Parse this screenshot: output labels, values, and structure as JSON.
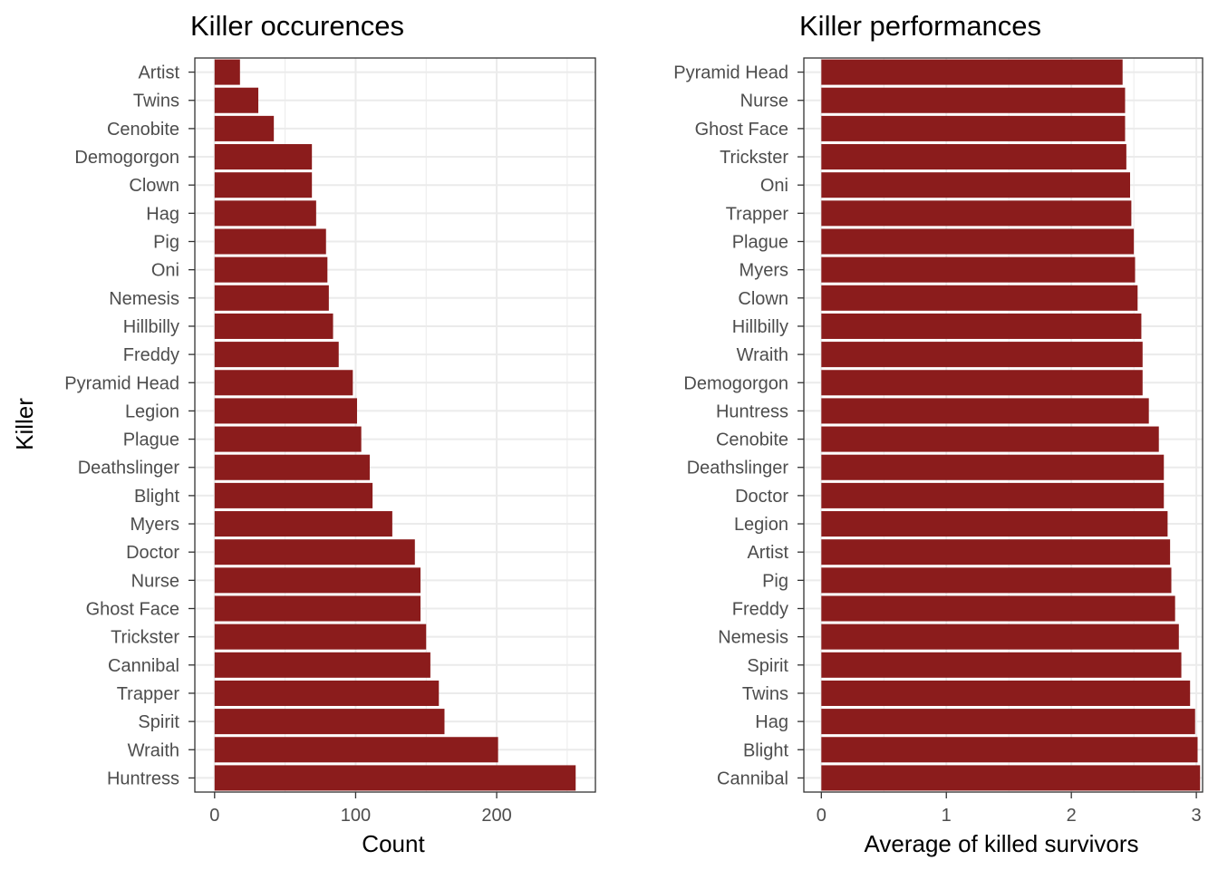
{
  "colors": {
    "bar": "#8B1C1C",
    "grid": "#EBEBEB",
    "panel_border": "#333333",
    "tick_text": "#4D4D4D"
  },
  "chart_data": [
    {
      "type": "bar",
      "orientation": "horizontal",
      "title": "Killer occurences",
      "xlabel": "Count",
      "ylabel": "Killer",
      "xlim": [
        -14,
        270
      ],
      "xticks": [
        0,
        100,
        200
      ],
      "xtick_labels": [
        "0",
        "100",
        "200"
      ],
      "grid": true,
      "categories": [
        "Artist",
        "Twins",
        "Cenobite",
        "Demogorgon",
        "Clown",
        "Hag",
        "Pig",
        "Oni",
        "Nemesis",
        "Hillbilly",
        "Freddy",
        "Pyramid Head",
        "Legion",
        "Plague",
        "Deathslinger",
        "Blight",
        "Myers",
        "Doctor",
        "Nurse",
        "Ghost Face",
        "Trickster",
        "Cannibal",
        "Trapper",
        "Spirit",
        "Wraith",
        "Huntress"
      ],
      "values": [
        18,
        31,
        42,
        69,
        69,
        72,
        79,
        80,
        81,
        84,
        88,
        98,
        101,
        104,
        110,
        112,
        126,
        142,
        146,
        146,
        150,
        153,
        159,
        163,
        201,
        256
      ]
    },
    {
      "type": "bar",
      "orientation": "horizontal",
      "title": "Killer performances",
      "xlabel": "Average of killed survivors",
      "ylabel": "",
      "xlim": [
        -0.14,
        3.05
      ],
      "xticks": [
        0,
        1,
        2,
        3
      ],
      "xtick_labels": [
        "0",
        "1",
        "2",
        "3"
      ],
      "grid": true,
      "categories": [
        "Pyramid Head",
        "Nurse",
        "Ghost Face",
        "Trickster",
        "Oni",
        "Trapper",
        "Plague",
        "Myers",
        "Clown",
        "Hillbilly",
        "Wraith",
        "Demogorgon",
        "Huntress",
        "Cenobite",
        "Deathslinger",
        "Doctor",
        "Legion",
        "Artist",
        "Pig",
        "Freddy",
        "Nemesis",
        "Spirit",
        "Twins",
        "Hag",
        "Blight",
        "Cannibal"
      ],
      "values": [
        2.41,
        2.43,
        2.43,
        2.44,
        2.47,
        2.48,
        2.5,
        2.51,
        2.53,
        2.56,
        2.57,
        2.57,
        2.62,
        2.7,
        2.74,
        2.74,
        2.77,
        2.79,
        2.8,
        2.83,
        2.86,
        2.88,
        2.95,
        2.99,
        3.01,
        3.03
      ]
    }
  ]
}
